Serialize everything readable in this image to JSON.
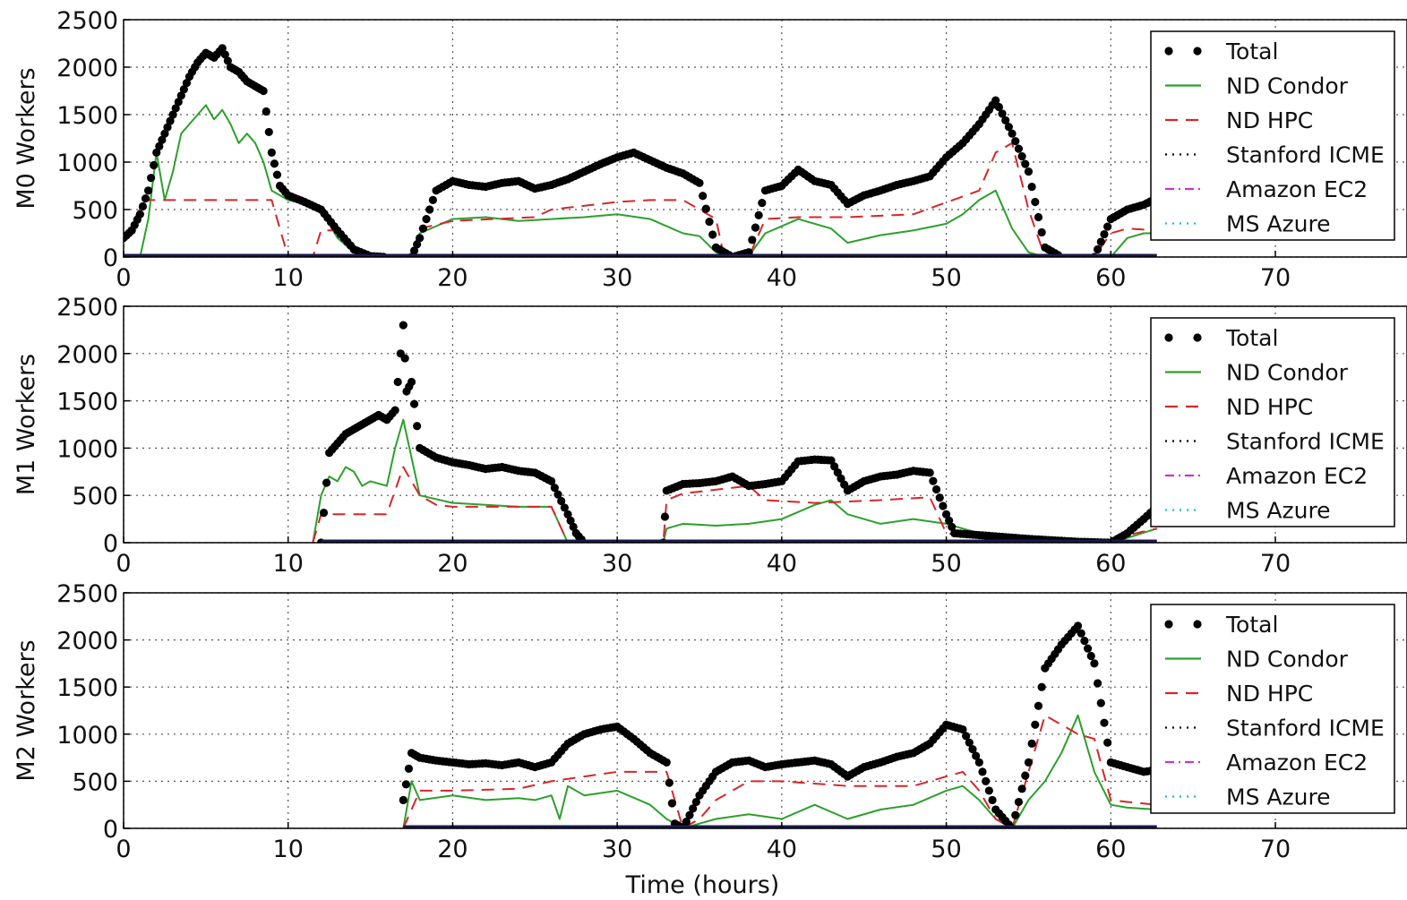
{
  "chart_data": [
    {
      "type": "line",
      "ylabel": "M0 Workers",
      "xlabel": "",
      "xlim": [
        0,
        78
      ],
      "ylim": [
        0,
        2500
      ],
      "xticks": [
        0,
        10,
        20,
        30,
        40,
        50,
        60,
        70
      ],
      "yticks": [
        0,
        500,
        1000,
        1500,
        2000,
        2500
      ],
      "grid": true,
      "legend_position": "top-right",
      "series": [
        {
          "name": "Total",
          "style": "dots",
          "color": "#000000",
          "x": [
            0,
            0.5,
            1,
            1.5,
            2,
            2.5,
            3,
            3.5,
            4,
            4.5,
            5,
            5.5,
            6,
            6.5,
            7,
            7.5,
            8,
            8.5,
            9,
            9.5,
            10,
            11,
            12,
            13,
            14,
            15,
            16,
            17.5,
            18,
            19,
            20,
            21,
            22,
            23,
            24,
            25,
            26,
            27,
            28,
            29,
            30,
            31,
            32,
            33,
            34,
            35,
            36,
            37,
            38,
            39,
            40,
            41,
            42,
            43,
            44,
            45,
            46,
            47,
            48,
            49,
            50,
            51,
            52,
            53,
            54,
            55,
            56,
            57,
            59,
            60,
            61,
            62,
            62.8
          ],
          "y": [
            200,
            280,
            450,
            700,
            1100,
            1300,
            1500,
            1700,
            1900,
            2050,
            2150,
            2100,
            2200,
            2000,
            1950,
            1850,
            1800,
            1750,
            1100,
            750,
            650,
            580,
            500,
            280,
            80,
            10,
            0,
            0,
            200,
            700,
            800,
            760,
            740,
            780,
            800,
            720,
            760,
            820,
            900,
            980,
            1050,
            1100,
            1020,
            940,
            880,
            780,
            100,
            0,
            50,
            700,
            750,
            920,
            800,
            760,
            560,
            650,
            700,
            760,
            800,
            850,
            1050,
            1200,
            1400,
            1650,
            1300,
            900,
            100,
            0,
            0,
            400,
            500,
            550,
            620
          ]
        },
        {
          "name": "ND Condor",
          "style": "solid",
          "color": "#2ca02c",
          "x": [
            0,
            1,
            1.5,
            2,
            2.5,
            3,
            3.5,
            4,
            4.5,
            5,
            5.5,
            6,
            6.5,
            7,
            7.5,
            8,
            8.5,
            9,
            10,
            11,
            12,
            13,
            14,
            15,
            17.5,
            18,
            20,
            22,
            24,
            26,
            28,
            30,
            32,
            34,
            35,
            36,
            37,
            38,
            39,
            41,
            43,
            44,
            46,
            48,
            50,
            51,
            52,
            53,
            54,
            55,
            56,
            60,
            61,
            62,
            62.8
          ],
          "y": [
            0,
            0,
            400,
            1100,
            600,
            900,
            1300,
            1400,
            1500,
            1600,
            1450,
            1550,
            1400,
            1200,
            1300,
            1200,
            1000,
            700,
            600,
            560,
            500,
            200,
            50,
            0,
            0,
            250,
            400,
            420,
            380,
            400,
            420,
            450,
            400,
            250,
            220,
            50,
            0,
            10,
            250,
            400,
            300,
            150,
            230,
            280,
            350,
            450,
            600,
            700,
            300,
            50,
            0,
            0,
            200,
            250,
            250
          ]
        },
        {
          "name": "ND HPC",
          "style": "dashed",
          "color": "#d62728",
          "x": [
            0,
            1.3,
            2,
            9,
            9.5,
            10,
            11.5,
            12,
            13,
            14,
            15,
            17.5,
            18,
            20,
            25,
            26,
            30,
            32,
            34,
            36,
            36.5,
            38,
            39,
            41,
            44,
            48,
            52,
            53,
            54,
            55,
            56,
            59,
            60,
            61,
            62.8
          ],
          "y": [
            200,
            600,
            600,
            600,
            300,
            0,
            0,
            280,
            280,
            100,
            0,
            0,
            300,
            380,
            420,
            500,
            580,
            600,
            600,
            400,
            0,
            0,
            400,
            420,
            420,
            450,
            700,
            1100,
            1200,
            500,
            0,
            0,
            250,
            300,
            280
          ]
        },
        {
          "name": "Stanford ICME",
          "style": "dotted",
          "color": "#000000",
          "x": [
            0,
            62.8
          ],
          "y": [
            0,
            0
          ]
        },
        {
          "name": "Amazon EC2",
          "style": "dashdot",
          "color": "#cc33cc",
          "x": [
            0,
            62.8
          ],
          "y": [
            0,
            0
          ]
        },
        {
          "name": "MS Azure",
          "style": "dotted",
          "color": "#17becf",
          "x": [
            0,
            62.8
          ],
          "y": [
            0,
            0
          ]
        }
      ]
    },
    {
      "type": "line",
      "ylabel": "M1 Workers",
      "xlabel": "",
      "xlim": [
        0,
        78
      ],
      "ylim": [
        0,
        2500
      ],
      "xticks": [
        0,
        10,
        20,
        30,
        40,
        50,
        60,
        70
      ],
      "yticks": [
        0,
        500,
        1000,
        1500,
        2000,
        2500
      ],
      "grid": true,
      "legend_position": "top-right",
      "series": [
        {
          "name": "Total",
          "style": "dots",
          "color": "#000000",
          "x": [
            12,
            12.5,
            13,
            13.5,
            14,
            14.5,
            15,
            15.5,
            16,
            16.5,
            17,
            17.2,
            17.5,
            18,
            19,
            20,
            21,
            22,
            23,
            24,
            25,
            26,
            27,
            27.5,
            28,
            32.8,
            33,
            34,
            35,
            36,
            37,
            38,
            39,
            40,
            41,
            42,
            43,
            44,
            45,
            46,
            47,
            48,
            49,
            50,
            50.5,
            52,
            55,
            58,
            60,
            61,
            62,
            62.8
          ],
          "y": [
            0,
            950,
            1050,
            1150,
            1200,
            1250,
            1300,
            1350,
            1300,
            1400,
            2300,
            1600,
            1700,
            1000,
            900,
            850,
            820,
            780,
            800,
            760,
            740,
            650,
            300,
            100,
            0,
            0,
            550,
            620,
            630,
            650,
            700,
            600,
            620,
            650,
            860,
            880,
            870,
            550,
            650,
            700,
            720,
            760,
            740,
            300,
            100,
            80,
            40,
            10,
            0,
            100,
            250,
            380
          ]
        },
        {
          "name": "ND Condor",
          "style": "solid",
          "color": "#2ca02c",
          "x": [
            11.5,
            12,
            12.5,
            13,
            13.5,
            14,
            14.5,
            15,
            16,
            16.5,
            17,
            17.5,
            18,
            20,
            22,
            24,
            26,
            27,
            32.8,
            33,
            34,
            36,
            38,
            40,
            42,
            43,
            44,
            46,
            48,
            50,
            52,
            55,
            60,
            61,
            62.8
          ],
          "y": [
            0,
            500,
            700,
            650,
            800,
            750,
            600,
            650,
            600,
            1000,
            1300,
            900,
            500,
            420,
            400,
            380,
            380,
            0,
            0,
            150,
            200,
            180,
            200,
            250,
            400,
            450,
            300,
            200,
            250,
            200,
            100,
            50,
            0,
            50,
            150
          ]
        },
        {
          "name": "ND HPC",
          "style": "dashed",
          "color": "#d62728",
          "x": [
            11.5,
            12,
            13,
            16,
            17,
            18,
            19,
            20,
            26,
            27,
            32.8,
            33,
            34,
            38,
            39,
            42,
            46,
            49,
            50,
            51,
            52,
            60,
            61,
            62.8
          ],
          "y": [
            0,
            300,
            300,
            300,
            800,
            500,
            400,
            380,
            380,
            0,
            0,
            450,
            520,
            600,
            450,
            420,
            450,
            480,
            100,
            80,
            50,
            0,
            80,
            150
          ]
        },
        {
          "name": "Stanford ICME",
          "style": "dotted",
          "color": "#000000",
          "x": [
            12,
            62.8
          ],
          "y": [
            0,
            0
          ]
        },
        {
          "name": "Amazon EC2",
          "style": "dashdot",
          "color": "#cc33cc",
          "x": [
            12,
            62.8
          ],
          "y": [
            0,
            0
          ]
        },
        {
          "name": "MS Azure",
          "style": "dotted",
          "color": "#17becf",
          "x": [
            12,
            62.8
          ],
          "y": [
            0,
            0
          ]
        }
      ]
    },
    {
      "type": "line",
      "ylabel": "M2 Workers",
      "xlabel": "Time (hours)",
      "xlim": [
        0,
        78
      ],
      "ylim": [
        0,
        2500
      ],
      "xticks": [
        0,
        10,
        20,
        30,
        40,
        50,
        60,
        70
      ],
      "yticks": [
        0,
        500,
        1000,
        1500,
        2000,
        2500
      ],
      "grid": true,
      "legend_position": "top-right",
      "series": [
        {
          "name": "Total",
          "style": "dots",
          "color": "#000000",
          "x": [
            17,
            17.5,
            18,
            19,
            20,
            21,
            22,
            23,
            24,
            25,
            26,
            27,
            28,
            29,
            30,
            31,
            32,
            33,
            33.5,
            34,
            35,
            36,
            37,
            38,
            39,
            40,
            41,
            42,
            43,
            44,
            45,
            46,
            47,
            48,
            49,
            50,
            51,
            52,
            53,
            54,
            55,
            56,
            57,
            58,
            59,
            60,
            61,
            62,
            62.8
          ],
          "y": [
            300,
            800,
            750,
            720,
            700,
            680,
            690,
            670,
            700,
            650,
            700,
            900,
            1000,
            1050,
            1080,
            950,
            800,
            700,
            50,
            0,
            350,
            600,
            700,
            720,
            650,
            680,
            700,
            720,
            680,
            550,
            650,
            700,
            760,
            800,
            900,
            1100,
            1050,
            700,
            200,
            0,
            700,
            1700,
            1950,
            2150,
            1750,
            700,
            650,
            600,
            620
          ]
        },
        {
          "name": "ND Condor",
          "style": "solid",
          "color": "#2ca02c",
          "x": [
            17,
            17.5,
            18,
            20,
            22,
            24,
            25,
            26,
            26.5,
            27,
            28,
            30,
            32,
            33,
            34,
            35,
            36,
            38,
            40,
            42,
            44,
            46,
            48,
            50,
            51,
            52,
            53,
            54,
            55,
            56,
            57,
            58,
            59,
            60,
            61,
            62.8
          ],
          "y": [
            0,
            500,
            300,
            350,
            300,
            320,
            300,
            350,
            100,
            450,
            350,
            400,
            250,
            100,
            0,
            50,
            100,
            150,
            100,
            250,
            100,
            200,
            250,
            400,
            450,
            300,
            100,
            0,
            300,
            500,
            800,
            1200,
            600,
            250,
            220,
            200
          ]
        },
        {
          "name": "ND HPC",
          "style": "dashed",
          "color": "#d62728",
          "x": [
            17,
            18,
            20,
            24,
            26,
            28,
            30,
            33,
            34,
            35,
            36,
            38,
            40,
            44,
            48,
            50,
            51,
            52,
            53,
            54,
            55,
            56,
            58,
            59,
            60,
            61,
            62.8
          ],
          "y": [
            0,
            400,
            400,
            420,
            500,
            550,
            600,
            600,
            0,
            100,
            300,
            500,
            500,
            450,
            450,
            550,
            600,
            400,
            100,
            0,
            600,
            1200,
            1000,
            950,
            300,
            280,
            250
          ]
        },
        {
          "name": "Stanford ICME",
          "style": "dotted",
          "color": "#000000",
          "x": [
            17,
            62.8
          ],
          "y": [
            0,
            0
          ]
        },
        {
          "name": "Amazon EC2",
          "style": "dashdot",
          "color": "#cc33cc",
          "x": [
            17,
            62.8
          ],
          "y": [
            0,
            0
          ]
        },
        {
          "name": "MS Azure",
          "style": "dotted",
          "color": "#17becf",
          "x": [
            17,
            62.8
          ],
          "y": [
            0,
            0
          ]
        }
      ]
    }
  ]
}
